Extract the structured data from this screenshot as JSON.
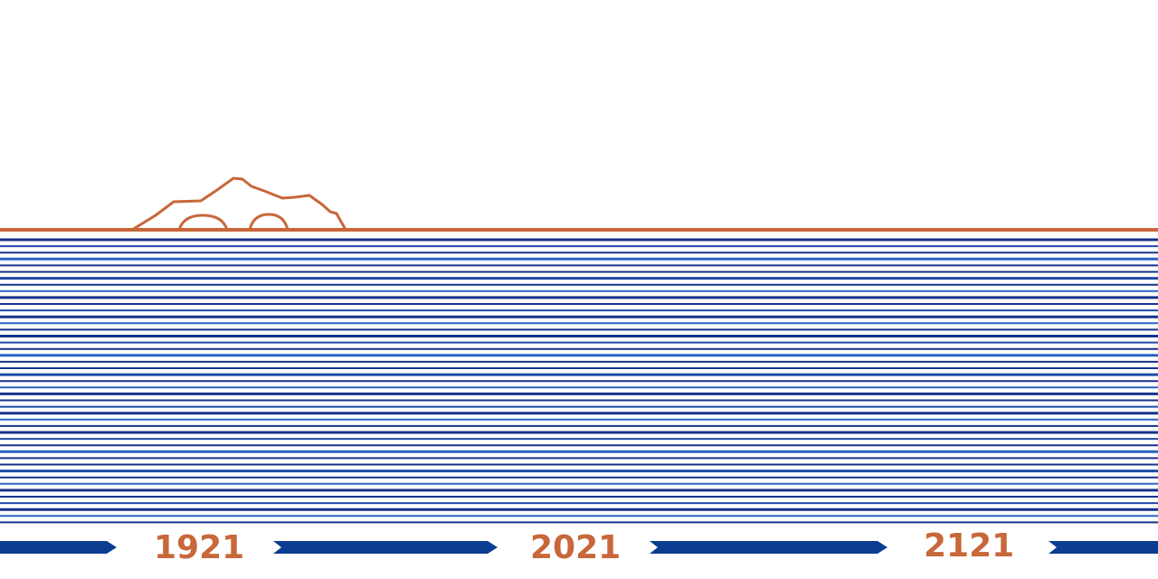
{
  "timeline": {
    "years": [
      "1921",
      "2021",
      "2121"
    ]
  },
  "colors": {
    "island_outline": "#c8673a",
    "horizon": "#c8673a",
    "water_dark": "#17328a",
    "water_mid": "#1d4aa6",
    "water_light": "#2a63c0",
    "arrow": "#0b3d91",
    "year_text": "#c8673a",
    "background": "#ffffff"
  }
}
